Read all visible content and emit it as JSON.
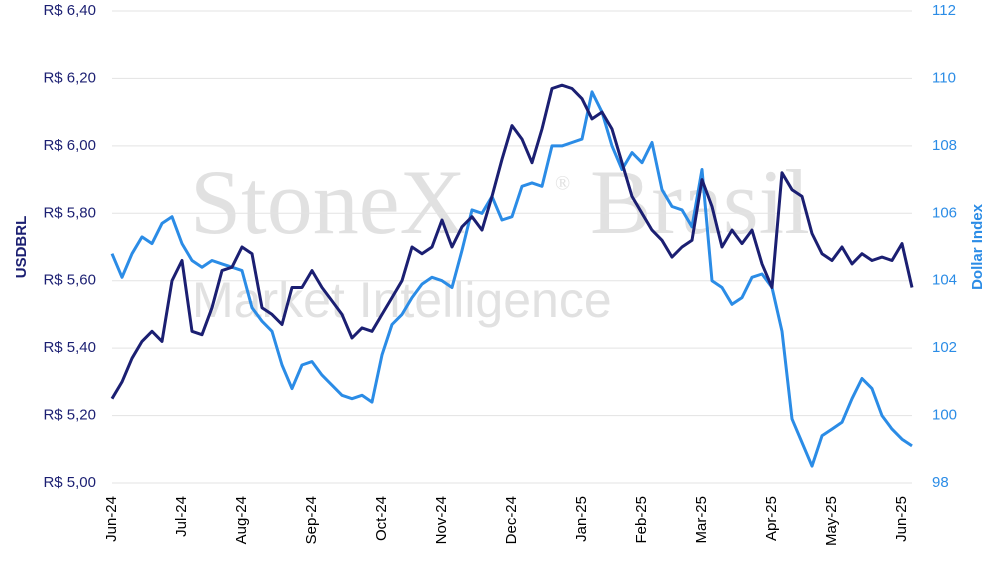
{
  "chart_data": {
    "type": "line",
    "watermark": {
      "brand": "StoneX",
      "registered": "®",
      "region": "Brasil",
      "tagline": "Market Intelligence"
    },
    "y_label": "USDBRL",
    "y2_label": "Dollar Index",
    "categories": [
      "Jun-24",
      null,
      null,
      null,
      null,
      null,
      null,
      "Jul-24",
      null,
      null,
      null,
      null,
      null,
      "Aug-24",
      null,
      null,
      null,
      null,
      null,
      null,
      "Sep-24",
      null,
      null,
      null,
      null,
      null,
      null,
      "Oct-24",
      null,
      null,
      null,
      null,
      null,
      "Nov-24",
      null,
      null,
      null,
      null,
      null,
      null,
      "Dec-24",
      null,
      null,
      null,
      null,
      null,
      null,
      "Jan-25",
      null,
      null,
      null,
      null,
      null,
      "Feb-25",
      null,
      null,
      null,
      null,
      null,
      "Mar-25",
      null,
      null,
      null,
      null,
      null,
      null,
      "Apr-25",
      null,
      null,
      null,
      null,
      null,
      "May-25",
      null,
      null,
      null,
      null,
      null,
      null,
      "Jun-25",
      null
    ],
    "series": [
      {
        "name": "USDBRL",
        "color": "#1b1f72",
        "axis": "y",
        "values": [
          5.25,
          5.3,
          5.37,
          5.42,
          5.45,
          5.42,
          5.6,
          5.66,
          5.45,
          5.44,
          5.52,
          5.63,
          5.64,
          5.7,
          5.68,
          5.52,
          5.5,
          5.47,
          5.58,
          5.58,
          5.63,
          5.58,
          5.54,
          5.5,
          5.43,
          5.46,
          5.45,
          5.5,
          5.55,
          5.6,
          5.7,
          5.68,
          5.7,
          5.78,
          5.7,
          5.76,
          5.79,
          5.75,
          5.85,
          5.96,
          6.06,
          6.02,
          5.95,
          6.05,
          6.17,
          6.18,
          6.17,
          6.14,
          6.08,
          6.1,
          6.05,
          5.95,
          5.85,
          5.8,
          5.75,
          5.72,
          5.67,
          5.7,
          5.72,
          5.9,
          5.82,
          5.7,
          5.75,
          5.71,
          5.75,
          5.65,
          5.58,
          5.92,
          5.87,
          5.85,
          5.74,
          5.68,
          5.66,
          5.7,
          5.65,
          5.68,
          5.66,
          5.67,
          5.66,
          5.71,
          5.58
        ]
      },
      {
        "name": "Dollar Index",
        "color": "#2b8ce6",
        "axis": "y2",
        "values": [
          104.8,
          104.1,
          104.8,
          105.3,
          105.1,
          105.7,
          105.9,
          105.1,
          104.6,
          104.4,
          104.6,
          104.5,
          104.4,
          104.3,
          103.2,
          102.8,
          102.5,
          101.5,
          100.8,
          101.5,
          101.6,
          101.2,
          100.9,
          100.6,
          100.5,
          100.6,
          100.4,
          101.8,
          102.7,
          103.0,
          103.5,
          103.9,
          104.1,
          104.0,
          103.8,
          104.9,
          106.1,
          106.0,
          106.5,
          105.8,
          105.9,
          106.8,
          106.9,
          106.8,
          108.0,
          108.0,
          108.1,
          108.2,
          109.6,
          109.0,
          108.0,
          107.3,
          107.8,
          107.5,
          108.1,
          106.7,
          106.2,
          106.1,
          105.6,
          107.3,
          104.0,
          103.8,
          103.3,
          103.5,
          104.1,
          104.2,
          103.8,
          102.5,
          99.9,
          99.2,
          98.5,
          99.4,
          99.6,
          99.8,
          100.5,
          101.1,
          100.8,
          100.0,
          99.6,
          99.3,
          99.1
        ]
      }
    ],
    "ylim": [
      5.0,
      6.4
    ],
    "yticks": [
      {
        "value": 5.0,
        "label": "R$ 5,00"
      },
      {
        "value": 5.2,
        "label": "R$ 5,20"
      },
      {
        "value": 5.4,
        "label": "R$ 5,40"
      },
      {
        "value": 5.6,
        "label": "R$ 5,60"
      },
      {
        "value": 5.8,
        "label": "R$ 5,80"
      },
      {
        "value": 6.0,
        "label": "R$ 6,00"
      },
      {
        "value": 6.2,
        "label": "R$ 6,20"
      },
      {
        "value": 6.4,
        "label": "R$ 6,40"
      }
    ],
    "y2lim": [
      98,
      112
    ],
    "y2ticks": [
      98,
      100,
      102,
      104,
      106,
      108,
      110,
      112
    ],
    "grid": true
  }
}
